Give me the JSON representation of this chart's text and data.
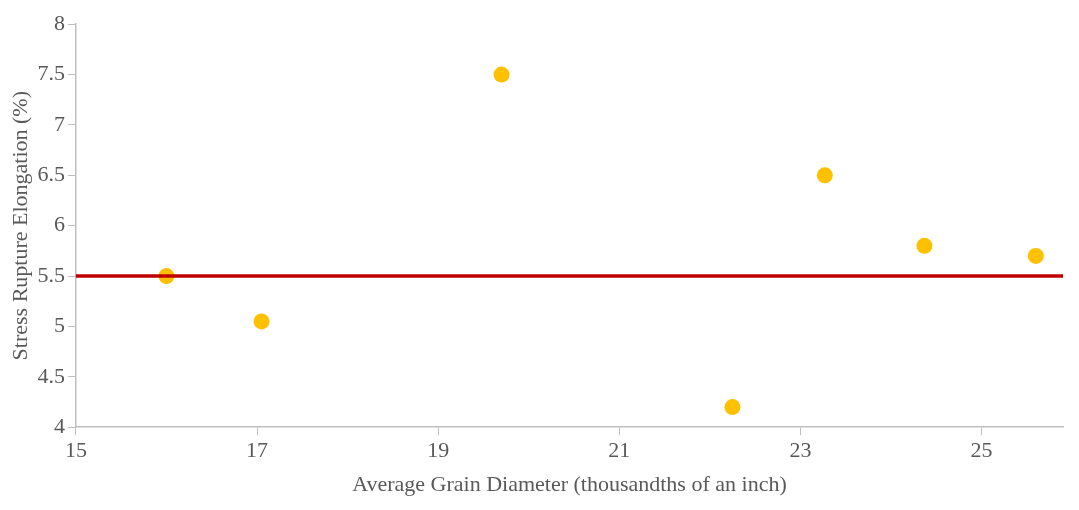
{
  "chart_data": {
    "type": "scatter",
    "xlabel": "Average Grain Diameter (thousandths of an inch)",
    "ylabel": "Stress Rupture Elongation (%)",
    "x": [
      16,
      17.05,
      19.7,
      22.25,
      23.27,
      24.37,
      25.6
    ],
    "series": [
      {
        "color": "#ffc000",
        "values": [
          5.5,
          5.05,
          7.5,
          4.2,
          6.5,
          5.8,
          5.7
        ]
      }
    ],
    "xlim": [
      15,
      25.9
    ],
    "xticks": [
      15,
      17,
      19,
      21,
      23,
      25
    ],
    "ylim": [
      4,
      8
    ],
    "yticks": [
      4,
      4.5,
      5,
      5.5,
      6,
      6.5,
      7,
      7.5,
      8
    ],
    "ref_lines": [
      {
        "axis": "y",
        "value": 5.5,
        "color": "#c00000"
      }
    ],
    "marker": "circle",
    "grid": false,
    "legend": false
  }
}
